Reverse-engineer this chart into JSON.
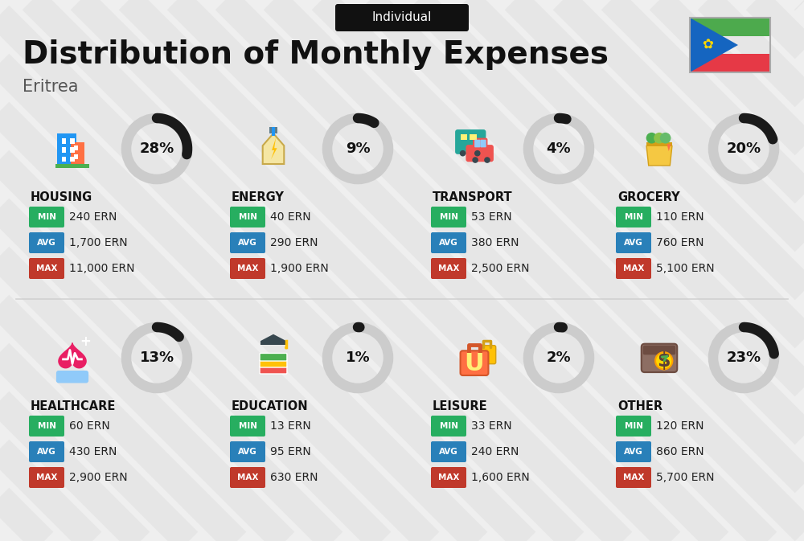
{
  "title": "Distribution of Monthly Expenses",
  "subtitle": "Eritrea",
  "tag": "Individual",
  "background_color": "#efefef",
  "categories": [
    {
      "name": "HOUSING",
      "percent": 28,
      "min_val": "240 ERN",
      "avg_val": "1,700 ERN",
      "max_val": "11,000 ERN",
      "row": 0,
      "col": 0
    },
    {
      "name": "ENERGY",
      "percent": 9,
      "min_val": "40 ERN",
      "avg_val": "290 ERN",
      "max_val": "1,900 ERN",
      "row": 0,
      "col": 1
    },
    {
      "name": "TRANSPORT",
      "percent": 4,
      "min_val": "53 ERN",
      "avg_val": "380 ERN",
      "max_val": "2,500 ERN",
      "row": 0,
      "col": 2
    },
    {
      "name": "GROCERY",
      "percent": 20,
      "min_val": "110 ERN",
      "avg_val": "760 ERN",
      "max_val": "5,100 ERN",
      "row": 0,
      "col": 3
    },
    {
      "name": "HEALTHCARE",
      "percent": 13,
      "min_val": "60 ERN",
      "avg_val": "430 ERN",
      "max_val": "2,900 ERN",
      "row": 1,
      "col": 0
    },
    {
      "name": "EDUCATION",
      "percent": 1,
      "min_val": "13 ERN",
      "avg_val": "95 ERN",
      "max_val": "630 ERN",
      "row": 1,
      "col": 1
    },
    {
      "name": "LEISURE",
      "percent": 2,
      "min_val": "33 ERN",
      "avg_val": "240 ERN",
      "max_val": "1,600 ERN",
      "row": 1,
      "col": 2
    },
    {
      "name": "OTHER",
      "percent": 23,
      "min_val": "120 ERN",
      "avg_val": "860 ERN",
      "max_val": "5,700 ERN",
      "row": 1,
      "col": 3
    }
  ],
  "min_color": "#27ae60",
  "avg_color": "#2980b9",
  "max_color": "#c0392b",
  "label_text_color": "#ffffff",
  "value_text_color": "#222222",
  "category_name_color": "#111111",
  "title_color": "#111111",
  "subtitle_color": "#555555",
  "tag_bg_color": "#111111",
  "tag_text_color": "#ffffff",
  "ring_filled_color": "#1a1a1a",
  "ring_empty_color": "#cccccc",
  "percent_text_color": "#111111",
  "stripe_color": "#d8d8d8",
  "divider_color": "#cccccc"
}
